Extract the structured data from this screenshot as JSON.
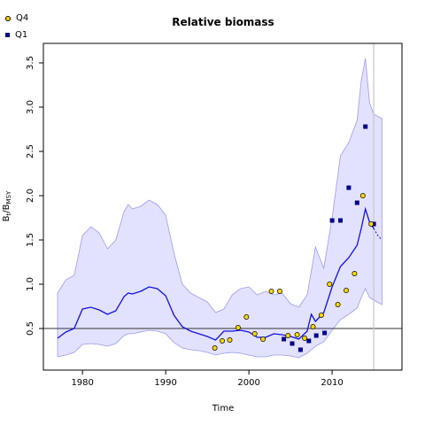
{
  "chart_data": {
    "type": "line",
    "title": "Relative biomass",
    "xlabel": "Time",
    "ylabel_main": "B",
    "ylabel_sub1": "t",
    "ylabel_mid": "/B",
    "ylabel_sub2": "MSY",
    "xlim": [
      1975.3,
      2018.4
    ],
    "ylim": [
      0.03,
      3.72
    ],
    "xticks": [
      1980,
      1990,
      2000,
      2010
    ],
    "yticks": [
      0.5,
      1.0,
      1.5,
      2.0,
      2.5,
      3.0,
      3.5
    ],
    "ytick_labels": [
      "0.5",
      "1.0",
      "1.5",
      "2.0",
      "2.5",
      "3.0",
      "3.5"
    ],
    "reference_line_y": 0.5,
    "vertical_line_x": 2015,
    "legend_position": "top-left",
    "colors": {
      "line": "#1010e0",
      "band_fill": "#e2e2ff",
      "band_edge": "#9a9af0",
      "q4": "#ffd700",
      "q1": "#00008b",
      "ref": "#333333",
      "vline": "#c8c8c8"
    },
    "legend": [
      {
        "name": "Q4",
        "marker": "circle"
      },
      {
        "name": "Q1",
        "marker": "square"
      }
    ],
    "median": {
      "x": [
        1977,
        1978,
        1979,
        1980,
        1981,
        1982,
        1983,
        1984,
        1985,
        1985.5,
        1986,
        1987,
        1988,
        1989,
        1990,
        1991,
        1992,
        1993,
        1994,
        1995,
        1996,
        1997,
        1998,
        1999,
        2000,
        2001,
        2002,
        2003,
        2004,
        2005,
        2006,
        2007,
        2007.5,
        2008,
        2009,
        2010,
        2011,
        2012,
        2013,
        2013.5,
        2014,
        2014.5,
        2015
      ],
      "y": [
        0.39,
        0.46,
        0.5,
        0.72,
        0.74,
        0.71,
        0.66,
        0.7,
        0.86,
        0.9,
        0.89,
        0.92,
        0.97,
        0.95,
        0.87,
        0.65,
        0.52,
        0.47,
        0.44,
        0.41,
        0.37,
        0.47,
        0.47,
        0.48,
        0.46,
        0.4,
        0.4,
        0.44,
        0.43,
        0.41,
        0.38,
        0.47,
        0.66,
        0.58,
        0.68,
        0.97,
        1.2,
        1.3,
        1.44,
        1.63,
        1.85,
        1.7,
        1.63
      ]
    },
    "median_projection": {
      "x": [
        2015,
        2015.5,
        2016
      ],
      "y": [
        1.63,
        1.55,
        1.5
      ]
    },
    "band": {
      "x": [
        1977,
        1978,
        1979,
        1980,
        1981,
        1982,
        1983,
        1984,
        1985,
        1985.5,
        1986,
        1987,
        1988,
        1989,
        1990,
        1991,
        1992,
        1993,
        1994,
        1995,
        1996,
        1997,
        1998,
        1999,
        2000,
        2001,
        2002,
        2003,
        2004,
        2005,
        2006,
        2007,
        2008,
        2009,
        2010,
        2011,
        2012,
        2013,
        2013.5,
        2014,
        2014.5,
        2015,
        2016
      ],
      "upper": [
        0.9,
        1.05,
        1.1,
        1.55,
        1.65,
        1.58,
        1.4,
        1.5,
        1.82,
        1.9,
        1.85,
        1.88,
        1.95,
        1.9,
        1.78,
        1.35,
        1.0,
        0.9,
        0.85,
        0.8,
        0.68,
        0.72,
        0.88,
        0.95,
        0.97,
        0.88,
        0.92,
        0.88,
        0.9,
        0.78,
        0.74,
        0.88,
        1.42,
        1.18,
        1.75,
        2.45,
        2.6,
        2.85,
        3.3,
        3.55,
        3.05,
        2.92,
        2.87
      ],
      "lower": [
        0.18,
        0.2,
        0.23,
        0.32,
        0.33,
        0.32,
        0.3,
        0.33,
        0.42,
        0.44,
        0.44,
        0.46,
        0.48,
        0.47,
        0.44,
        0.34,
        0.28,
        0.26,
        0.25,
        0.23,
        0.2,
        0.22,
        0.23,
        0.22,
        0.2,
        0.18,
        0.18,
        0.2,
        0.2,
        0.19,
        0.17,
        0.22,
        0.3,
        0.35,
        0.48,
        0.6,
        0.66,
        0.73,
        0.85,
        0.95,
        0.85,
        0.82,
        0.77
      ]
    },
    "q4_points": {
      "x": [
        1995.9,
        1996.8,
        1997.7,
        1998.7,
        1999.7,
        2000.7,
        2001.7,
        2002.7,
        2003.7,
        2004.7,
        2005.8,
        2006.7,
        2007.7,
        2008.7,
        2009.7,
        2010.7,
        2011.7,
        2012.7,
        2013.7,
        2014.7
      ],
      "y": [
        0.28,
        0.36,
        0.37,
        0.51,
        0.63,
        0.44,
        0.38,
        0.92,
        0.92,
        0.42,
        0.43,
        0.39,
        0.52,
        0.65,
        1.0,
        0.77,
        0.93,
        1.12,
        2.0,
        1.68
      ]
    },
    "q1_points": {
      "x": [
        2004.2,
        2005.2,
        2006.2,
        2007.2,
        2008.1,
        2009.1,
        2010.0,
        2011.0,
        2012.0,
        2013.0,
        2014.0,
        2015.0
      ],
      "y": [
        0.38,
        0.33,
        0.26,
        0.36,
        0.42,
        0.45,
        1.72,
        1.72,
        2.09,
        1.92,
        2.78,
        1.68
      ]
    }
  }
}
